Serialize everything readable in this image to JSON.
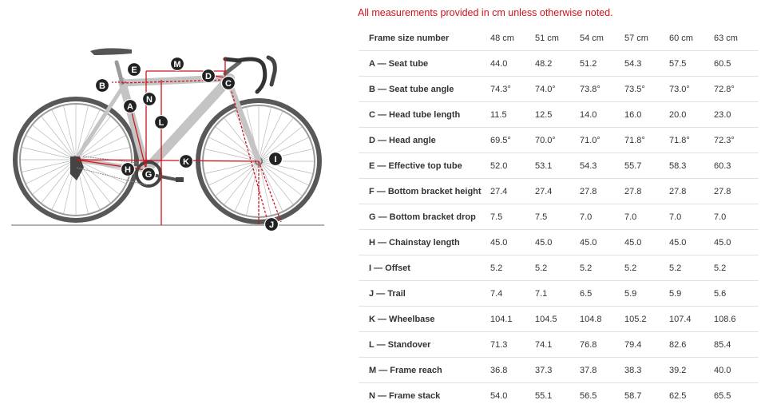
{
  "note": "All measurements provided in cm unless otherwise noted.",
  "table": {
    "header_label": "Frame size number",
    "sizes": [
      "48 cm",
      "51 cm",
      "54 cm",
      "57 cm",
      "60 cm",
      "63 cm"
    ],
    "rows": [
      {
        "label": "A — Seat tube",
        "values": [
          "44.0",
          "48.2",
          "51.2",
          "54.3",
          "57.5",
          "60.5"
        ]
      },
      {
        "label": "B — Seat tube angle",
        "values": [
          "74.3°",
          "74.0°",
          "73.8°",
          "73.5°",
          "73.0°",
          "72.8°"
        ]
      },
      {
        "label": "C — Head tube length",
        "values": [
          "11.5",
          "12.5",
          "14.0",
          "16.0",
          "20.0",
          "23.0"
        ]
      },
      {
        "label": "D — Head angle",
        "values": [
          "69.5°",
          "70.0°",
          "71.0°",
          "71.8°",
          "71.8°",
          "72.3°"
        ]
      },
      {
        "label": "E — Effective top tube",
        "values": [
          "52.0",
          "53.1",
          "54.3",
          "55.7",
          "58.3",
          "60.3"
        ]
      },
      {
        "label": "F — Bottom bracket height",
        "values": [
          "27.4",
          "27.4",
          "27.8",
          "27.8",
          "27.8",
          "27.8"
        ]
      },
      {
        "label": "G — Bottom bracket drop",
        "values": [
          "7.5",
          "7.5",
          "7.0",
          "7.0",
          "7.0",
          "7.0"
        ]
      },
      {
        "label": "H — Chainstay length",
        "values": [
          "45.0",
          "45.0",
          "45.0",
          "45.0",
          "45.0",
          "45.0"
        ]
      },
      {
        "label": "I — Offset",
        "values": [
          "5.2",
          "5.2",
          "5.2",
          "5.2",
          "5.2",
          "5.2"
        ]
      },
      {
        "label": "J — Trail",
        "values": [
          "7.4",
          "7.1",
          "6.5",
          "5.9",
          "5.9",
          "5.6"
        ]
      },
      {
        "label": "K — Wheelbase",
        "values": [
          "104.1",
          "104.5",
          "104.8",
          "105.2",
          "107.4",
          "108.6"
        ]
      },
      {
        "label": "L — Standover",
        "values": [
          "71.3",
          "74.1",
          "76.8",
          "79.4",
          "82.6",
          "85.4"
        ]
      },
      {
        "label": "M — Frame reach",
        "values": [
          "36.8",
          "37.3",
          "37.8",
          "38.3",
          "39.2",
          "40.0"
        ]
      },
      {
        "label": "N — Frame stack",
        "values": [
          "54.0",
          "55.1",
          "56.5",
          "58.7",
          "62.5",
          "65.5"
        ]
      }
    ]
  },
  "diagram": {
    "markers": [
      "A",
      "B",
      "C",
      "D",
      "E",
      "G",
      "H",
      "I",
      "J",
      "K",
      "L",
      "M",
      "N"
    ],
    "colors": {
      "frame": "#c8c8c8",
      "measure": "#d0121b",
      "marker": "#222222",
      "note": "#d0121b"
    }
  }
}
